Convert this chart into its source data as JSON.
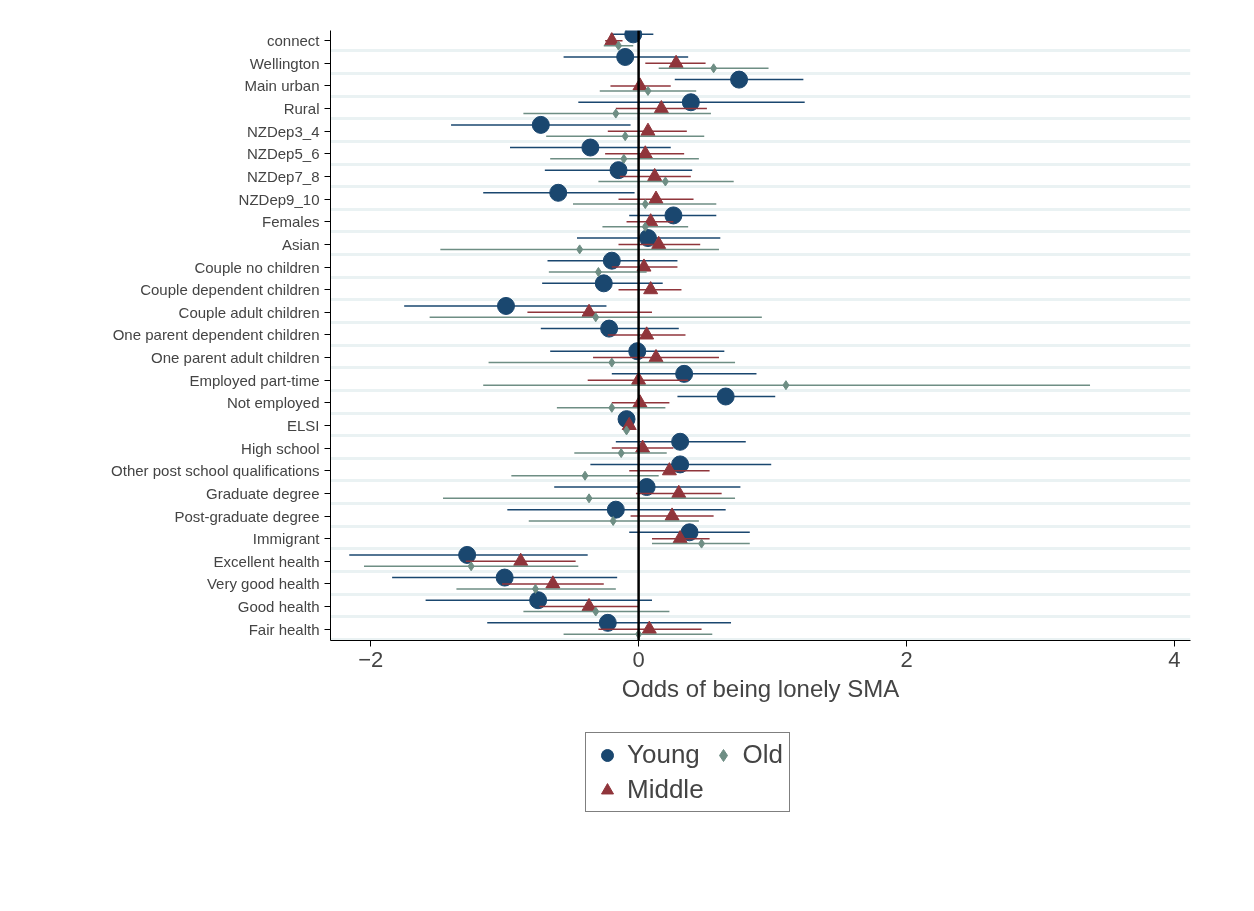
{
  "chart_data": {
    "type": "scatter",
    "orientation": "horizontal",
    "xlabel": "Odds of being lonely SMA",
    "categories": [
      "connect",
      "Wellington",
      "Main urban",
      "Rural",
      "NZDep3_4",
      "NZDep5_6",
      "NZDep7_8",
      "NZDep9_10",
      "Females",
      "Asian",
      "Couple no children",
      "Couple dependent children",
      "Couple adult children",
      "One parent dependent children",
      "One parent adult children",
      "Employed part-time",
      "Not employed",
      "ELSI",
      "High school",
      "Other post school qualifications",
      "Graduate degree",
      "Post-graduate degree",
      "Immigrant",
      "Excellent health",
      "Very good health",
      "Good health",
      "Fair health"
    ],
    "series": [
      {
        "name": "Young",
        "color": "#1a476f",
        "marker": "circle",
        "values": [
          -0.04,
          -0.1,
          0.75,
          0.39,
          -0.73,
          -0.36,
          -0.15,
          -0.6,
          0.26,
          0.07,
          -0.2,
          -0.26,
          -0.99,
          -0.22,
          -0.01,
          0.34,
          0.65,
          -0.09,
          0.31,
          0.31,
          0.06,
          -0.17,
          0.38,
          -1.28,
          -1.0,
          -0.75,
          -0.23
        ],
        "errors": [
          [
            -0.21,
            0.11
          ],
          [
            -0.56,
            0.37
          ],
          [
            0.27,
            1.23
          ],
          [
            -0.45,
            1.24
          ],
          [
            -1.4,
            -0.06
          ],
          [
            -0.96,
            0.24
          ],
          [
            -0.7,
            0.4
          ],
          [
            -1.16,
            -0.03
          ],
          [
            -0.07,
            0.58
          ],
          [
            -0.46,
            0.61
          ],
          [
            -0.68,
            0.29
          ],
          [
            -0.72,
            0.18
          ],
          [
            -1.75,
            -0.24
          ],
          [
            -0.73,
            0.3
          ],
          [
            -0.66,
            0.64
          ],
          [
            -0.2,
            0.88
          ],
          [
            0.29,
            1.02
          ],
          null,
          [
            -0.17,
            0.8
          ],
          [
            -0.36,
            0.99
          ],
          [
            -0.63,
            0.76
          ],
          [
            -0.98,
            0.65
          ],
          [
            -0.07,
            0.83
          ],
          [
            -2.16,
            -0.38
          ],
          [
            -1.84,
            -0.16
          ],
          [
            -1.59,
            0.1
          ],
          [
            -1.13,
            0.69
          ]
        ]
      },
      {
        "name": "Middle",
        "color": "#90353b",
        "marker": "triangle",
        "values": [
          -0.2,
          0.28,
          0.01,
          0.17,
          0.07,
          0.05,
          0.12,
          0.13,
          0.09,
          0.15,
          0.04,
          0.09,
          -0.37,
          0.06,
          0.13,
          0.0,
          0.01,
          -0.07,
          0.03,
          0.23,
          0.3,
          0.25,
          0.31,
          -0.88,
          -0.64,
          -0.37,
          0.08
        ],
        "errors": [
          [
            -0.25,
            -0.12
          ],
          [
            0.05,
            0.5
          ],
          [
            -0.21,
            0.24
          ],
          [
            -0.17,
            0.51
          ],
          [
            -0.23,
            0.36
          ],
          [
            -0.25,
            0.34
          ],
          [
            -0.14,
            0.39
          ],
          [
            -0.15,
            0.41
          ],
          [
            -0.09,
            0.26
          ],
          [
            -0.15,
            0.46
          ],
          [
            -0.2,
            0.29
          ],
          [
            -0.15,
            0.32
          ],
          [
            -0.83,
            0.1
          ],
          [
            -0.23,
            0.35
          ],
          [
            -0.34,
            0.6
          ],
          [
            -0.38,
            0.37
          ],
          [
            -0.2,
            0.23
          ],
          [
            -0.1,
            -0.04
          ],
          [
            -0.2,
            0.26
          ],
          [
            -0.07,
            0.53
          ],
          [
            -0.02,
            0.62
          ],
          [
            -0.06,
            0.56
          ],
          [
            0.1,
            0.53
          ],
          [
            -1.29,
            -0.47
          ],
          [
            -1.02,
            -0.26
          ],
          [
            -0.74,
            0.0
          ],
          [
            -0.3,
            0.47
          ]
        ]
      },
      {
        "name": "Old",
        "color": "#6e8e84",
        "marker": "diamond",
        "values": [
          -0.15,
          0.56,
          0.07,
          -0.17,
          -0.1,
          -0.11,
          0.2,
          0.05,
          0.05,
          -0.44,
          -0.3,
          null,
          -0.32,
          null,
          -0.2,
          1.1,
          -0.2,
          -0.09,
          -0.13,
          -0.4,
          -0.37,
          -0.19,
          0.47,
          -1.25,
          -0.77,
          -0.32,
          0.0
        ],
        "errors": [
          [
            -0.26,
            -0.04
          ],
          [
            0.15,
            0.97
          ],
          [
            -0.29,
            0.43
          ],
          [
            -0.86,
            0.54
          ],
          [
            -0.69,
            0.49
          ],
          [
            -0.66,
            0.45
          ],
          [
            -0.3,
            0.71
          ],
          [
            -0.49,
            0.58
          ],
          [
            -0.27,
            0.37
          ],
          [
            -1.48,
            0.6
          ],
          [
            -0.67,
            0.06
          ],
          null,
          [
            -1.56,
            0.92
          ],
          null,
          [
            -1.12,
            0.72
          ],
          [
            -1.16,
            3.37
          ],
          [
            -0.61,
            0.2
          ],
          null,
          [
            -0.48,
            0.21
          ],
          [
            -0.95,
            0.15
          ],
          [
            -1.46,
            0.72
          ],
          [
            -0.82,
            0.45
          ],
          [
            0.1,
            0.83
          ],
          [
            -2.05,
            -0.45
          ],
          [
            -1.36,
            -0.17
          ],
          [
            -0.86,
            0.23
          ],
          [
            -0.56,
            0.55
          ]
        ]
      }
    ],
    "xlim": [
      -2.3,
      4.12
    ],
    "xticks": [
      -2,
      0,
      2,
      4
    ],
    "ref_lines": [
      {
        "axis": "x",
        "value": 0,
        "color": "#000000"
      }
    ],
    "grid": "y",
    "legend": "bottom"
  }
}
